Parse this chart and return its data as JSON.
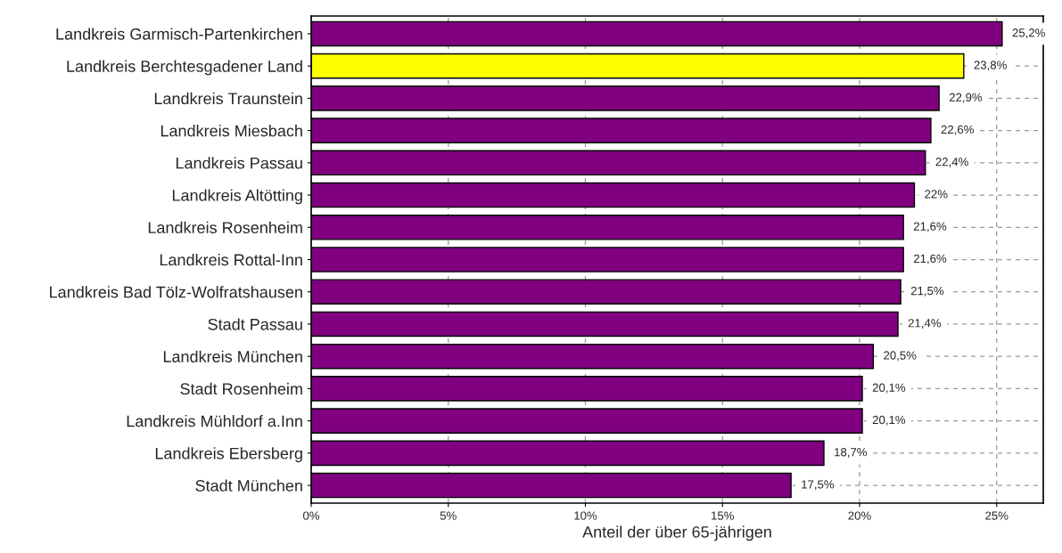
{
  "chart_data": {
    "type": "bar",
    "orientation": "horizontal",
    "xlabel": "Anteil der über 65-jährigen",
    "categories": [
      "Landkreis Garmisch-Partenkirchen",
      "Landkreis Berchtesgadener Land",
      "Landkreis Traunstein",
      "Landkreis Miesbach",
      "Landkreis Passau",
      "Landkreis Altötting",
      "Landkreis Rosenheim",
      "Landkreis Rottal-Inn",
      "Landkreis Bad Tölz-Wolfratshausen",
      "Stadt Passau",
      "Landkreis München",
      "Stadt Rosenheim",
      "Landkreis Mühldorf a.Inn",
      "Landkreis Ebersberg",
      "Stadt München"
    ],
    "values": [
      25.2,
      23.8,
      22.9,
      22.6,
      22.4,
      22,
      21.6,
      21.6,
      21.5,
      21.4,
      20.5,
      20.1,
      20.1,
      18.7,
      17.5
    ],
    "colors": [
      "#800080",
      "#ffff00",
      "#800080",
      "#800080",
      "#800080",
      "#800080",
      "#800080",
      "#800080",
      "#800080",
      "#800080",
      "#800080",
      "#800080",
      "#800080",
      "#800080",
      "#800080"
    ],
    "value_labels": [
      "25,2%",
      "23,8%",
      "22,9%",
      "22,6%",
      "22,4%",
      "22%",
      "21,6%",
      "21,6%",
      "21,5%",
      "21,4%",
      "20,5%",
      "20,1%",
      "20,1%",
      "18,7%",
      "17,5%"
    ],
    "xlim": [
      0,
      26.7
    ],
    "xticks": [
      {
        "value": 0,
        "label": "0%"
      },
      {
        "value": 5,
        "label": "5%"
      },
      {
        "value": 10,
        "label": "10%"
      },
      {
        "value": 15,
        "label": "15%"
      },
      {
        "value": 20,
        "label": "20%"
      },
      {
        "value": 25,
        "label": "25%"
      }
    ],
    "grid": true,
    "legend": false
  }
}
